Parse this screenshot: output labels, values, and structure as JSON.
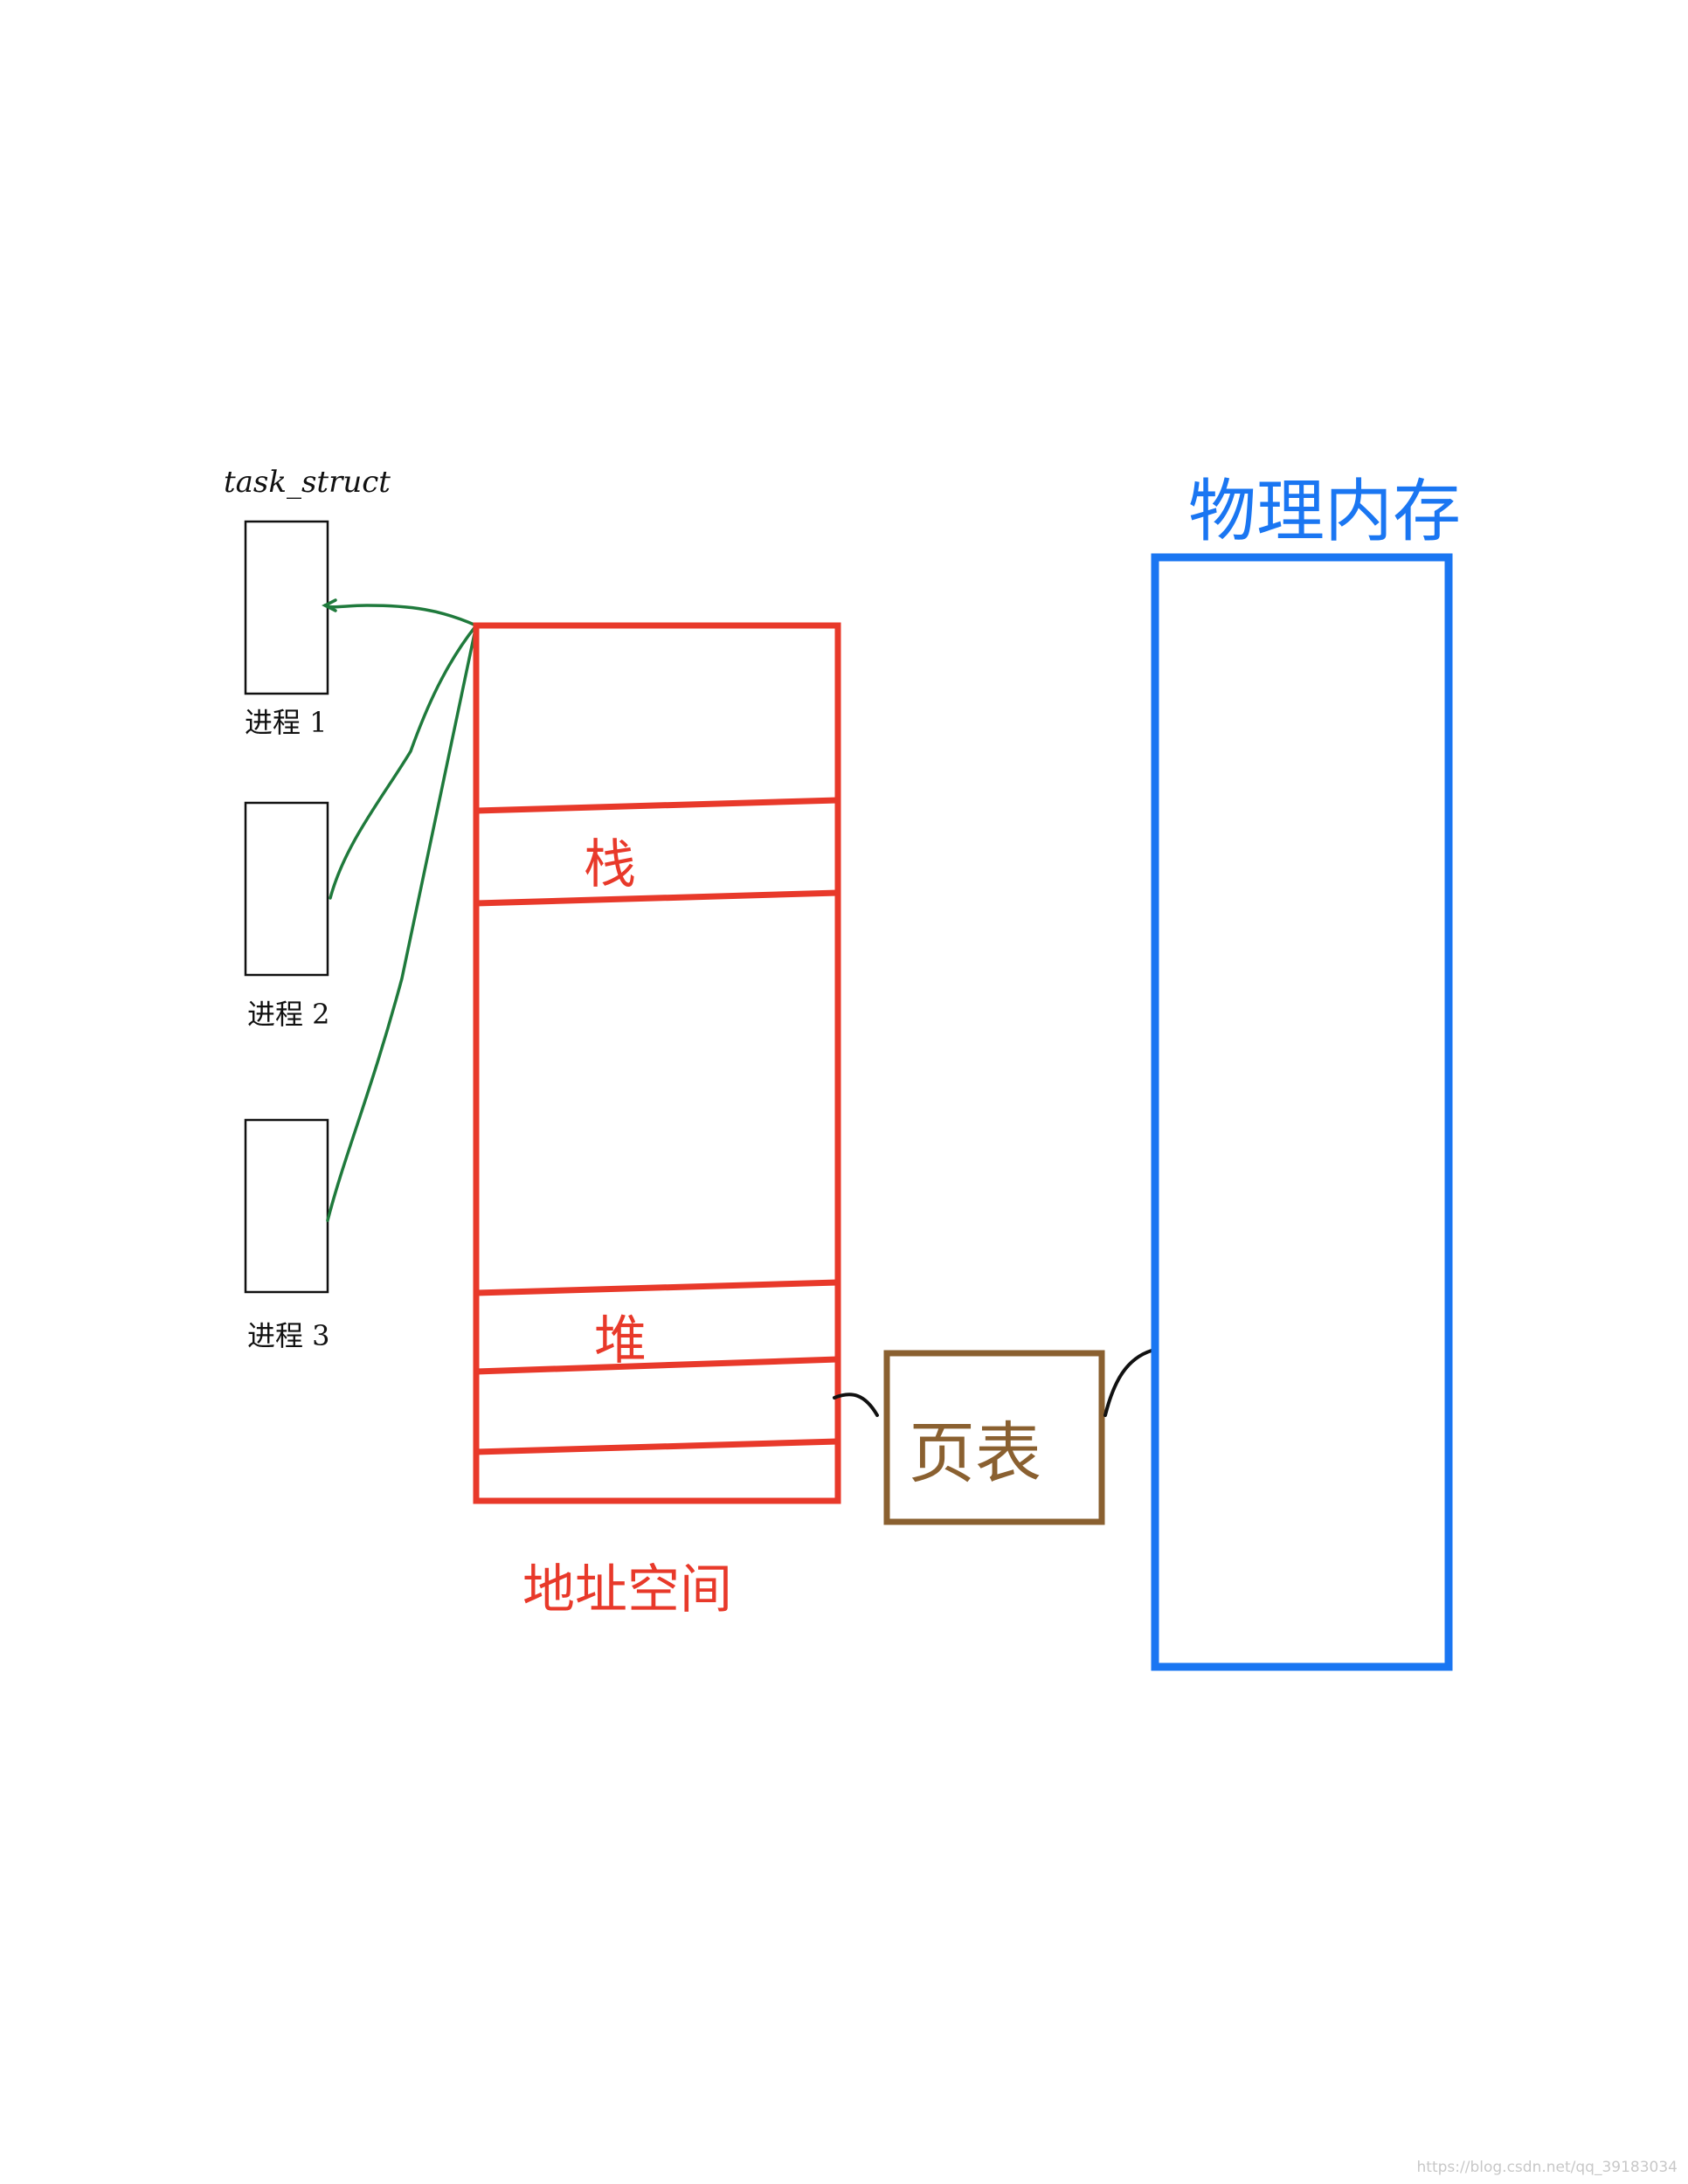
{
  "task_struct_label": "task_struct",
  "processes": [
    {
      "label": "进程 1"
    },
    {
      "label": "进程 2"
    },
    {
      "label": "进程 3"
    }
  ],
  "address_space": {
    "label": "地址空间",
    "regions": {
      "stack": "栈",
      "heap": "堆"
    }
  },
  "page_table": {
    "label": "页表"
  },
  "physical_memory": {
    "label": "物理内存"
  },
  "watermark": "https://blog.csdn.net/qq_39183034",
  "colors": {
    "address_space": "#e8392a",
    "page_table": "#8a6030",
    "physical_memory": "#1a76f2",
    "pointer_lines": "#1f7a3c",
    "connectors": "#111111",
    "process_boxes": "#111111"
  }
}
